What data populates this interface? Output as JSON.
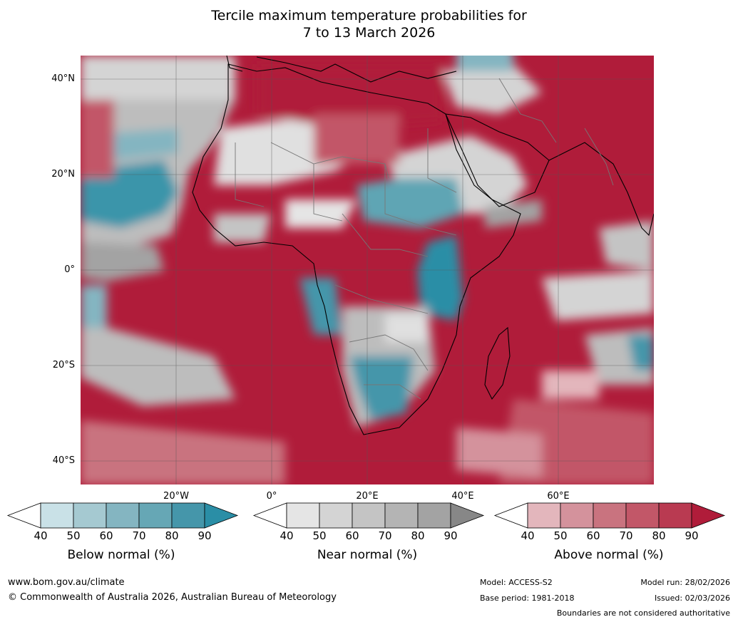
{
  "title": {
    "line1": "Tercile maximum temperature probabilities for",
    "line2": "7 to 13 March 2026"
  },
  "map": {
    "lat_labels": [
      "40°N",
      "20°N",
      "0°",
      "20°S",
      "40°S"
    ],
    "lon_labels": [
      "20°W",
      "0°",
      "20°E",
      "40°E",
      "60°E"
    ]
  },
  "colorbars": [
    {
      "label": "Below normal (%)",
      "ticks": [
        "40",
        "50",
        "60",
        "70",
        "80",
        "90"
      ],
      "colors": [
        "#ffffff",
        "#c9e1e7",
        "#a5c9d1",
        "#84b5c1",
        "#66a7b5",
        "#4596aa",
        "#2a8ea6"
      ]
    },
    {
      "label": "Near normal (%)",
      "ticks": [
        "40",
        "50",
        "60",
        "70",
        "80",
        "90"
      ],
      "colors": [
        "#ffffff",
        "#e5e5e5",
        "#d4d4d4",
        "#c4c4c4",
        "#b4b4b4",
        "#a3a3a3",
        "#878787"
      ]
    },
    {
      "label": "Above normal (%)",
      "ticks": [
        "40",
        "50",
        "60",
        "70",
        "80",
        "90"
      ],
      "colors": [
        "#ffffff",
        "#e3b6bc",
        "#d4929c",
        "#c9737f",
        "#c25768",
        "#b93a51",
        "#b01c3a"
      ]
    }
  ],
  "footer": {
    "website": "www.bom.gov.au/climate",
    "copyright": "© Commonwealth of Australia 2026, Australian Bureau of Meteorology",
    "model": "Model: ACCESS-S2",
    "base_period": "Base period: 1981-2018",
    "model_run": "Model run: 28/02/2026",
    "issued": "Issued: 02/03/2026",
    "disclaimer": "Boundaries are not considered authoritative"
  }
}
